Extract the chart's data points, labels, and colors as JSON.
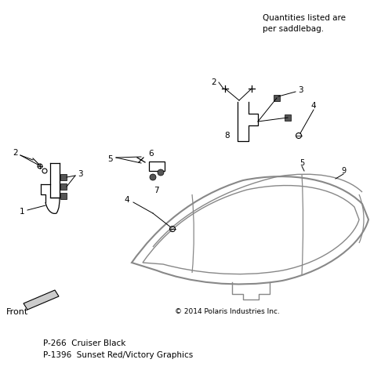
{
  "bg_color": "#ffffff",
  "quantities_text": "Quantities listed are\nper saddlebag.",
  "copyright_text": "© 2014 Polaris Industries Inc.",
  "color_line1": "P-266  Cruiser Black",
  "color_line2": "P-1396  Sunset Red/Victory Graphics",
  "front_label": "Front",
  "lc": "#000000",
  "gc": "#888888"
}
